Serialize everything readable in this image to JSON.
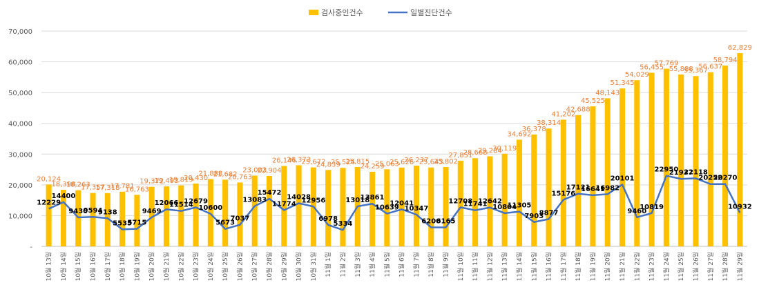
{
  "chart_data": {
    "type": "bar",
    "title": "",
    "xlabel": "",
    "ylabel": "",
    "ylim": [
      0,
      70000
    ],
    "y_ticks": [
      "-",
      "10,000",
      "20,000",
      "30,000",
      "40,000",
      "50,000",
      "60,000",
      "70,000"
    ],
    "grid": true,
    "legend_position": "top-center",
    "categories": [
      "10월 13일",
      "10월 14일",
      "10월 15일",
      "10월 16일",
      "10월 17일",
      "10월 18일",
      "10월 19일",
      "10월 20일",
      "10월 21일",
      "10월 22일",
      "10월 23일",
      "10월 24일",
      "10월 25일",
      "10월 26일",
      "10월 27일",
      "10월 28일",
      "10월 29일",
      "10월 30일",
      "10월 31일",
      "11월 1일",
      "11월 2일",
      "11월 3일",
      "11월 4일",
      "11월 5일",
      "11월 6일",
      "11월 7일",
      "11월 8일",
      "11월 9일",
      "11월 10일",
      "11월 11일",
      "11월 12일",
      "11월 13일",
      "11월 14일",
      "11월 15일",
      "11월 16일",
      "11월 17일",
      "11월 18일",
      "11월 19일",
      "11월 20일",
      "11월 21일",
      "11월 22일",
      "11월 23일",
      "11월 24일",
      "11월 25일",
      "11월 26일",
      "11월 27일",
      "11월 28일",
      "11월 29일"
    ],
    "series": [
      {
        "name": "검사중인건수",
        "chart": "bar",
        "color": "#FFC000",
        "label_color": "#ED7D31",
        "values": [
          20124,
          18398,
          18263,
          17357,
          17318,
          17781,
          16763,
          19372,
          19493,
          19819,
          20430,
          21888,
          21682,
          20763,
          23003,
          22904,
          26146,
          26373,
          25672,
          24839,
          25524,
          25815,
          24259,
          25063,
          25626,
          26237,
          25643,
          25802,
          27851,
          28668,
          29284,
          30119,
          34692,
          36378,
          38314,
          41202,
          42688,
          45525,
          48143,
          51345,
          54029,
          56455,
          57769,
          55888,
          55367,
          56637,
          58794,
          62829
        ],
        "labels": [
          "20,124",
          "18,398",
          "18,263",
          "17,357",
          "17,318",
          "17,781",
          "16,763",
          "19,372",
          "19,493",
          "19,819",
          "20,430",
          "21,888",
          "21,682",
          "20,763",
          "23,003",
          "22,904",
          "26,146",
          "26,373",
          "25,672",
          "24,839",
          "25,524",
          "25,815",
          "24,259",
          "25,063",
          "25,626",
          "26,237",
          "25,643",
          "25,802",
          "27,851",
          "28,668",
          "29,284",
          "30,119",
          "34,692",
          "36,378",
          "38,314",
          "41,202",
          "42,688",
          "45,525",
          "48,143",
          "51,345",
          "54,029",
          "56,455",
          "57,769",
          "55,888",
          "55,367",
          "56,637",
          "58,794",
          "62,829"
        ]
      },
      {
        "name": "일별진단건수",
        "chart": "line",
        "color": "#4472C4",
        "label_color": "#000000",
        "values": [
          12229,
          14400,
          9430,
          9594,
          9138,
          5535,
          5715,
          9469,
          12066,
          11514,
          12679,
          10600,
          5673,
          7037,
          13083,
          15472,
          11774,
          14028,
          12956,
          6978,
          5334,
          13018,
          13861,
          10639,
          12041,
          10347,
          6200,
          6165,
          12708,
          11741,
          12642,
          10804,
          11305,
          7903,
          8877,
          15176,
          17121,
          16641,
          16982,
          20101,
          9460,
          10819,
          22950,
          21937,
          22118,
          20252,
          20270,
          10932
        ],
        "labels": [
          "12229",
          "14400",
          "9430",
          "9594",
          "9138",
          "5535",
          "5715",
          "9469",
          "12066",
          "11514",
          "12679",
          "10600",
          "5673",
          "7037",
          "13083",
          "15472",
          "11774",
          "14028",
          "12956",
          "6978",
          "5334",
          "13018",
          "13861",
          "10639",
          "12041",
          "10347",
          "6200",
          "6165",
          "12708",
          "11741",
          "12642",
          "10804",
          "11305",
          "7903",
          "8877",
          "15176",
          "17121",
          "16641",
          "16982",
          "20101",
          "9460",
          "10819",
          "22950",
          "21937",
          "22118",
          "20252",
          "20270",
          "10932"
        ]
      }
    ]
  }
}
